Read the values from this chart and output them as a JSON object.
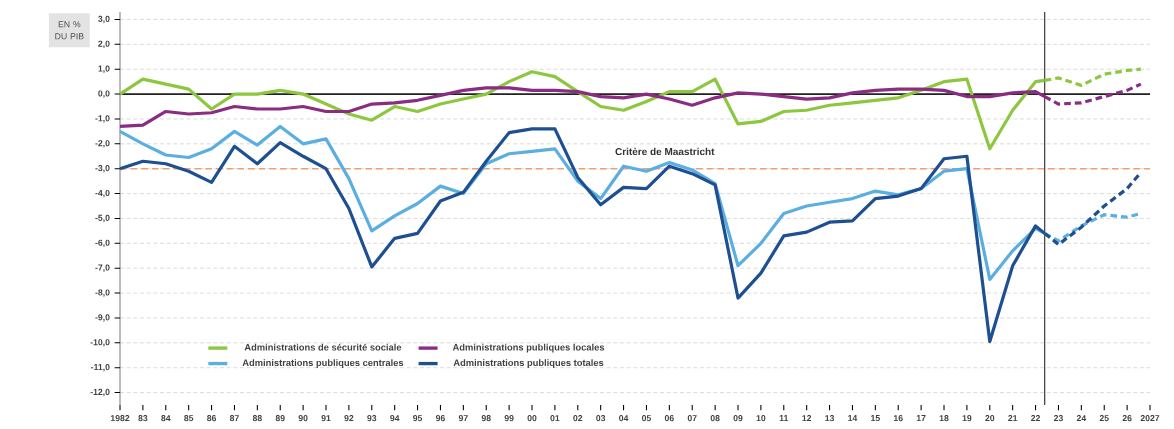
{
  "chart_data": {
    "type": "line",
    "ylabel": "EN % DU PIB",
    "x": [
      1982,
      1983,
      1984,
      1985,
      1986,
      1987,
      1988,
      1989,
      1990,
      1991,
      1992,
      1993,
      1994,
      1995,
      1996,
      1997,
      1998,
      1999,
      2000,
      2001,
      2002,
      2003,
      2004,
      2005,
      2006,
      2007,
      2008,
      2009,
      2010,
      2011,
      2012,
      2013,
      2014,
      2015,
      2016,
      2017,
      2018,
      2019,
      2020,
      2021,
      2022,
      2022.4
    ],
    "series": [
      {
        "name": "Administrations de sécurité sociale",
        "color": "#8dc63f",
        "values": [
          0,
          0.6,
          0.4,
          0.2,
          -0.6,
          0,
          0,
          0.15,
          0,
          -0.4,
          -0.8,
          -1.05,
          -0.5,
          -0.7,
          -0.4,
          -0.2,
          0,
          0.5,
          0.9,
          0.7,
          0.1,
          -0.5,
          -0.65,
          -0.3,
          0.1,
          0.1,
          0.6,
          -1.2,
          -1.1,
          -0.7,
          -0.65,
          -0.45,
          -0.35,
          -0.25,
          -0.15,
          0.15,
          0.5,
          0.6,
          -2.2,
          -0.65,
          0.5,
          0.55
        ]
      },
      {
        "name": "Administrations publiques locales",
        "color": "#8b2c83",
        "values": [
          -1.3,
          -1.25,
          -0.7,
          -0.8,
          -0.75,
          -0.5,
          -0.6,
          -0.6,
          -0.5,
          -0.7,
          -0.7,
          -0.4,
          -0.35,
          -0.25,
          -0.05,
          0.15,
          0.25,
          0.25,
          0.15,
          0.15,
          0.1,
          -0.1,
          -0.15,
          0,
          -0.2,
          -0.45,
          -0.15,
          0.05,
          0,
          -0.1,
          -0.2,
          -0.15,
          0.05,
          0.15,
          0.2,
          0.2,
          0.15,
          -0.1,
          -0.1,
          0.05,
          0.1,
          -0.1
        ]
      },
      {
        "name": "Administrations publiques centrales",
        "color": "#5aaee0",
        "values": [
          -1.5,
          -2.0,
          -2.45,
          -2.55,
          -2.2,
          -1.5,
          -2.05,
          -1.3,
          -2.0,
          -1.8,
          -3.4,
          -5.5,
          -4.9,
          -4.4,
          -3.7,
          -4.0,
          -2.8,
          -2.4,
          -2.3,
          -2.2,
          -3.5,
          -4.2,
          -2.9,
          -3.1,
          -2.75,
          -3.05,
          -3.6,
          -6.9,
          -6.0,
          -4.8,
          -4.5,
          -4.35,
          -4.2,
          -3.9,
          -4.05,
          -3.8,
          -3.1,
          -3.0,
          -7.45,
          -6.3,
          -5.4,
          -5.6
        ]
      },
      {
        "name": "Administrations publiques totales",
        "color": "#1d4f91",
        "values": [
          -3.0,
          -2.7,
          -2.8,
          -3.1,
          -3.55,
          -2.1,
          -2.8,
          -1.95,
          -2.5,
          -3.0,
          -4.6,
          -6.95,
          -5.8,
          -5.6,
          -4.3,
          -3.95,
          -2.7,
          -1.55,
          -1.4,
          -1.4,
          -3.35,
          -4.45,
          -3.75,
          -3.8,
          -2.9,
          -3.2,
          -3.65,
          -8.2,
          -7.2,
          -5.7,
          -5.55,
          -5.15,
          -5.1,
          -4.2,
          -4.1,
          -3.8,
          -2.6,
          -2.5,
          -9.95,
          -6.9,
          -5.3,
          -5.6
        ]
      },
      {
        "color": "#8dc63f",
        "line_style": "dashed",
        "x": [
          2022.4,
          2023,
          2024,
          2025,
          2026,
          2026.6
        ],
        "values": [
          0.55,
          0.65,
          0.35,
          0.8,
          0.95,
          1.0
        ]
      },
      {
        "color": "#8b2c83",
        "line_style": "dashed",
        "x": [
          2022.4,
          2023,
          2024,
          2025,
          2026,
          2026.6
        ],
        "values": [
          -0.1,
          -0.4,
          -0.35,
          -0.1,
          0.15,
          0.4
        ]
      },
      {
        "color": "#5aaee0",
        "line_style": "dashed",
        "x": [
          2022.4,
          2023,
          2024,
          2025,
          2026,
          2026.6
        ],
        "values": [
          -5.6,
          -5.9,
          -5.3,
          -4.85,
          -4.95,
          -4.8
        ]
      },
      {
        "color": "#1d4f91",
        "line_style": "dashed",
        "x": [
          2022.4,
          2023,
          2024,
          2025,
          2026,
          2026.6
        ],
        "values": [
          -5.6,
          -6.05,
          -5.35,
          -4.5,
          -3.8,
          -3.15
        ]
      }
    ],
    "xlim": [
      1982,
      2027
    ],
    "ylim": [
      -12.5,
      3.3
    ],
    "xticks": [
      1982,
      {
        "value": 1983,
        "label": "83"
      },
      {
        "value": 1984,
        "label": "84"
      },
      {
        "value": 1985,
        "label": "85"
      },
      {
        "value": 1986,
        "label": "86"
      },
      {
        "value": 1987,
        "label": "87"
      },
      {
        "value": 1988,
        "label": "88"
      },
      {
        "value": 1989,
        "label": "89"
      },
      {
        "value": 1990,
        "label": "90"
      },
      {
        "value": 1991,
        "label": "91"
      },
      {
        "value": 1992,
        "label": "92"
      },
      {
        "value": 1993,
        "label": "93"
      },
      {
        "value": 1994,
        "label": "94"
      },
      {
        "value": 1995,
        "label": "95"
      },
      {
        "value": 1996,
        "label": "96"
      },
      {
        "value": 1997,
        "label": "97"
      },
      {
        "value": 1998,
        "label": "98"
      },
      {
        "value": 1999,
        "label": "99"
      },
      {
        "value": 2000,
        "label": "00"
      },
      {
        "value": 2001,
        "label": "01"
      },
      {
        "value": 2002,
        "label": "02"
      },
      {
        "value": 2003,
        "label": "03"
      },
      {
        "value": 2004,
        "label": "04"
      },
      {
        "value": 2005,
        "label": "05"
      },
      {
        "value": 2006,
        "label": "06"
      },
      {
        "value": 2007,
        "label": "07"
      },
      {
        "value": 2008,
        "label": "08"
      },
      {
        "value": 2009,
        "label": "09"
      },
      {
        "value": 2010,
        "label": "10"
      },
      {
        "value": 2011,
        "label": "11"
      },
      {
        "value": 2012,
        "label": "12"
      },
      {
        "value": 2013,
        "label": "13"
      },
      {
        "value": 2014,
        "label": "14"
      },
      {
        "value": 2015,
        "label": "15"
      },
      {
        "value": 2016,
        "label": "16"
      },
      {
        "value": 2017,
        "label": "17"
      },
      {
        "value": 2018,
        "label": "18"
      },
      {
        "value": 2019,
        "label": "19"
      },
      {
        "value": 2020,
        "label": "20"
      },
      {
        "value": 2021,
        "label": "21"
      },
      {
        "value": 2022,
        "label": "22"
      },
      {
        "value": 2023,
        "label": "23"
      },
      {
        "value": 2024,
        "label": "24"
      },
      {
        "value": 2025,
        "label": "25"
      },
      {
        "value": 2026,
        "label": "26"
      },
      2027
    ],
    "yticks": [
      {
        "value": 3,
        "label": "3,0"
      },
      {
        "value": 2,
        "label": "2,0"
      },
      {
        "value": 1,
        "label": "1,0"
      },
      {
        "value": 0,
        "label": "0,0"
      },
      {
        "value": -1,
        "label": "-1,0"
      },
      {
        "value": -2,
        "label": "-2,0"
      },
      {
        "value": -3,
        "label": "-3,0"
      },
      {
        "value": -4,
        "label": "-4,0"
      },
      {
        "value": -5,
        "label": "-5,0"
      },
      {
        "value": -6,
        "label": "-6,0"
      },
      {
        "value": -7,
        "label": "-7,0"
      },
      {
        "value": -8,
        "label": "-8,0"
      },
      {
        "value": -9,
        "label": "-9,0"
      },
      {
        "value": -10,
        "label": "-10,0"
      },
      {
        "value": -11,
        "label": "-11,0"
      },
      {
        "value": -12,
        "label": "-12,0"
      }
    ],
    "ref_lines": [
      {
        "axis": "y",
        "value": -3,
        "label": "Critère de Maastricht",
        "color": "#f0a070",
        "line_style": "dashed"
      },
      {
        "axis": "y",
        "value": 0,
        "color": "#222222",
        "line_style": "solid"
      },
      {
        "axis": "x",
        "value": 2022.4,
        "color": "#222222",
        "line_style": "solid"
      }
    ],
    "grid": "y",
    "legend": "bottom left"
  }
}
